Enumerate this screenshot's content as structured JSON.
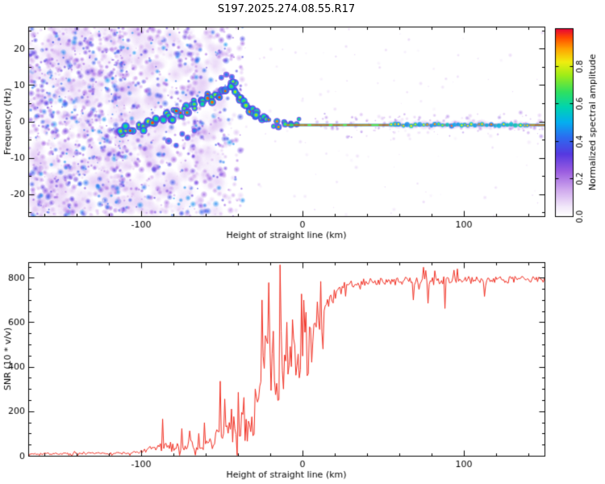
{
  "title": "S197.2025.274.08.55.R17",
  "chart_data": [
    {
      "type": "heatmap",
      "title": "S197.2025.274.08.55.R17",
      "xlabel": "Height of straight line (km)",
      "ylabel": "Frequency (Hz)",
      "xlim": [
        -170,
        150
      ],
      "ylim": [
        -26,
        26
      ],
      "xticks": [
        -100,
        0,
        100
      ],
      "xtick_labels": [
        "-100",
        "0",
        "100"
      ],
      "yticks": [
        -20,
        -10,
        0,
        10,
        20
      ],
      "ytick_labels": [
        "-20",
        "-10",
        "0",
        "10",
        "20"
      ],
      "x_minor_step": 20,
      "y_minor_step": 5,
      "colorbar": {
        "label": "Normalized spectral amplitude",
        "lim": [
          0,
          1
        ],
        "tick_values": [
          0,
          0.2,
          0.4,
          0.6,
          0.8
        ],
        "tick_labels": [
          "0.0",
          "0.2",
          "0.4",
          "0.6",
          "0.8"
        ],
        "stops": [
          [
            0,
            "#ffffff"
          ],
          [
            0.05,
            "#f2e8fa"
          ],
          [
            0.14,
            "#d0a9ee"
          ],
          [
            0.24,
            "#9a5ce0"
          ],
          [
            0.33,
            "#5639e0"
          ],
          [
            0.42,
            "#2c6cf0"
          ],
          [
            0.5,
            "#04aff0"
          ],
          [
            0.58,
            "#00d4b0"
          ],
          [
            0.66,
            "#2fe060"
          ],
          [
            0.75,
            "#9fec18"
          ],
          [
            0.82,
            "#f0ee10"
          ],
          [
            0.89,
            "#ffa302"
          ],
          [
            0.95,
            "#ff4a00"
          ],
          [
            1,
            "#e4003c"
          ]
        ]
      },
      "noise": {
        "seed": 42,
        "x_range": [
          -170,
          -35
        ],
        "amp_range": [
          0.05,
          0.47
        ]
      },
      "trace": {
        "points": [
          [
            -113,
            -3
          ],
          [
            -109,
            -2
          ],
          [
            -106,
            -3
          ],
          [
            -102,
            -1
          ],
          [
            -99,
            -2
          ],
          [
            -96,
            0
          ],
          [
            -93,
            -1
          ],
          [
            -90,
            1
          ],
          [
            -87,
            0
          ],
          [
            -84,
            2
          ],
          [
            -81,
            1
          ],
          [
            -79,
            3
          ],
          [
            -76,
            2
          ],
          [
            -73,
            4
          ],
          [
            -71,
            3
          ],
          [
            -68,
            5
          ],
          [
            -66,
            4
          ],
          [
            -63,
            6
          ],
          [
            -61,
            5
          ],
          [
            -58,
            7
          ],
          [
            -56,
            6
          ],
          [
            -53,
            8
          ],
          [
            -51,
            7
          ],
          [
            -49,
            9
          ],
          [
            -47,
            8
          ],
          [
            -45,
            10
          ],
          [
            -43,
            9
          ],
          [
            -42,
            11
          ],
          [
            -41,
            8
          ],
          [
            -39,
            7
          ],
          [
            -38,
            6
          ],
          [
            -36,
            5
          ],
          [
            -34,
            4
          ],
          [
            -32,
            3
          ],
          [
            -30,
            2
          ],
          [
            -28,
            2
          ],
          [
            -26,
            1
          ],
          [
            -24,
            1
          ],
          [
            -22,
            0
          ],
          [
            -20,
            0
          ],
          [
            -18,
            -1
          ],
          [
            -16,
            0
          ],
          [
            -14,
            -1
          ],
          [
            -12,
            0
          ],
          [
            -10,
            -1
          ],
          [
            -8,
            0
          ],
          [
            -6,
            -1
          ],
          [
            -4,
            -1
          ],
          [
            -2,
            0
          ]
        ],
        "secondary_points": [
          [
            -83,
            -5
          ],
          [
            -79,
            -6
          ],
          [
            -75,
            -4
          ],
          [
            -71,
            -5
          ],
          [
            -68,
            -3
          ],
          [
            -50,
            12
          ],
          [
            -47,
            13
          ],
          [
            -44,
            12
          ]
        ]
      },
      "flatline": {
        "x_range": [
          -10,
          150
        ],
        "freq": -1,
        "blob_regions": [
          [
            55,
            140
          ]
        ]
      }
    },
    {
      "type": "line",
      "xlabel": "Height of straight line (km)",
      "ylabel": "SNR (10 * v/v)",
      "xlim": [
        -170,
        150
      ],
      "ylim": [
        0,
        870
      ],
      "xticks": [
        -100,
        0,
        100
      ],
      "xtick_labels": [
        "-100",
        "0",
        "100"
      ],
      "yticks": [
        0,
        200,
        400,
        600,
        800
      ],
      "ytick_labels": [
        "0",
        "200",
        "400",
        "600",
        "800"
      ],
      "x_minor_step": 20,
      "y_minor_step": 50,
      "color": "#f02d20",
      "seed": 7,
      "keypoints": [
        [
          -170,
          8,
          8
        ],
        [
          -140,
          9,
          8
        ],
        [
          -120,
          10,
          10
        ],
        [
          -105,
          12,
          12
        ],
        [
          -97,
          20,
          22
        ],
        [
          -90,
          35,
          45
        ],
        [
          -85,
          35,
          45
        ],
        [
          -80,
          40,
          45
        ],
        [
          -74,
          45,
          55
        ],
        [
          -68,
          45,
          50
        ],
        [
          -62,
          50,
          55
        ],
        [
          -56,
          55,
          60
        ],
        [
          -51,
          90,
          130
        ],
        [
          -47,
          100,
          120
        ],
        [
          -43,
          110,
          130
        ],
        [
          -39,
          120,
          140
        ],
        [
          -36,
          120,
          130
        ],
        [
          -32,
          130,
          140
        ],
        [
          -29,
          170,
          200
        ],
        [
          -26,
          280,
          330
        ],
        [
          -23,
          330,
          330
        ],
        [
          -20,
          380,
          330
        ],
        [
          -17,
          380,
          300
        ],
        [
          -14,
          400,
          330
        ],
        [
          -11,
          400,
          250
        ],
        [
          -8,
          420,
          220
        ],
        [
          -5,
          440,
          200
        ],
        [
          -2,
          460,
          180
        ],
        [
          1,
          480,
          170
        ],
        [
          4,
          510,
          160
        ],
        [
          7,
          540,
          150
        ],
        [
          10,
          580,
          140
        ],
        [
          13,
          620,
          120
        ],
        [
          16,
          660,
          100
        ],
        [
          19,
          700,
          80
        ],
        [
          22,
          730,
          60
        ],
        [
          26,
          755,
          50
        ],
        [
          30,
          770,
          40
        ],
        [
          36,
          778,
          34
        ],
        [
          45,
          782,
          32
        ],
        [
          55,
          780,
          34
        ],
        [
          65,
          783,
          36
        ],
        [
          75,
          780,
          40
        ],
        [
          85,
          786,
          34
        ],
        [
          95,
          790,
          32
        ],
        [
          105,
          788,
          32
        ],
        [
          115,
          790,
          30
        ],
        [
          125,
          788,
          30
        ],
        [
          135,
          792,
          28
        ],
        [
          145,
          790,
          28
        ],
        [
          150,
          792,
          28
        ]
      ],
      "spikes": [
        [
          -87,
          165
        ],
        [
          -75,
          122
        ],
        [
          -70,
          112
        ],
        [
          -64,
          100
        ],
        [
          -51,
          335
        ],
        [
          -48,
          255
        ],
        [
          -44,
          210
        ],
        [
          -40,
          285
        ],
        [
          -36,
          262
        ],
        [
          -29,
          300
        ],
        [
          -25,
          700
        ],
        [
          -23,
          540
        ],
        [
          -21,
          778
        ],
        [
          -18,
          560
        ],
        [
          -14,
          858
        ],
        [
          -12,
          300
        ],
        [
          -10,
          600
        ],
        [
          -6,
          612
        ],
        [
          -2,
          350
        ],
        [
          2,
          645
        ],
        [
          6,
          420
        ],
        [
          9,
          692
        ],
        [
          13,
          480
        ],
        [
          69,
          700
        ],
        [
          78,
          685
        ],
        [
          88,
          662
        ],
        [
          113,
          716
        ]
      ]
    }
  ]
}
